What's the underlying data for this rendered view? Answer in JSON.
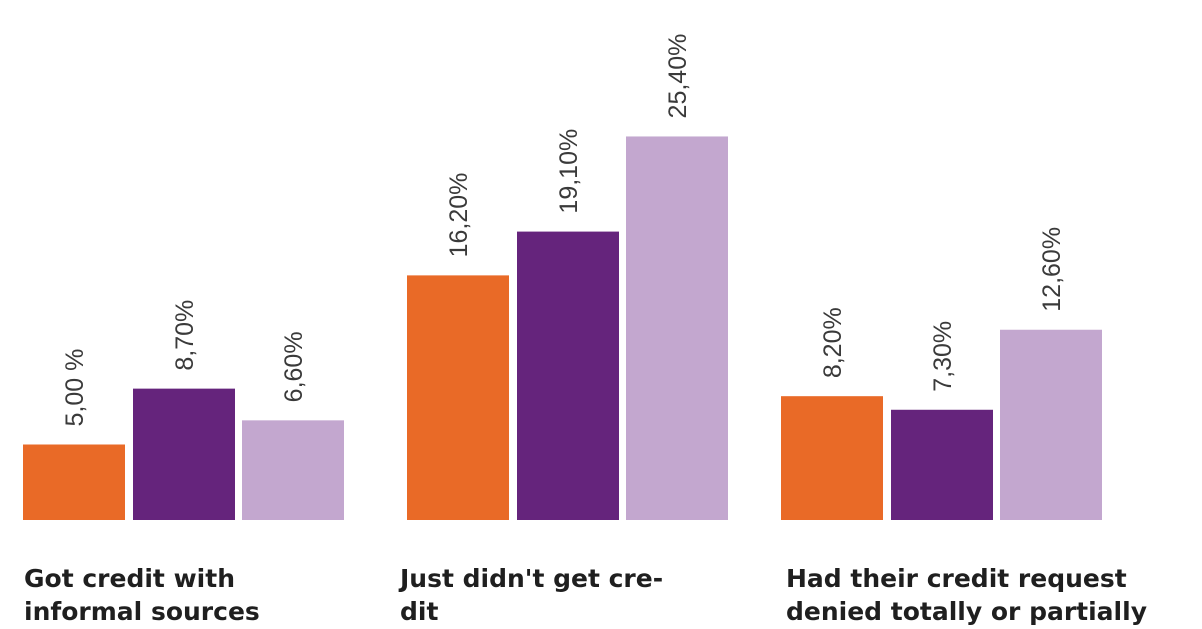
{
  "chart_data": {
    "type": "bar",
    "categories": [
      "Got credit with\ninformal sources",
      "Just didn't get cre-\ndit",
      "Had their credit request\ndenied totally or partially"
    ],
    "series": [
      {
        "color": "#e96a27",
        "values": [
          5.0,
          16.2,
          8.2
        ],
        "labels": [
          "5,00 %",
          "16,20%",
          "8,20%"
        ]
      },
      {
        "color": "#65247c",
        "values": [
          8.7,
          19.1,
          7.3
        ],
        "labels": [
          "8,70%",
          "19,10%",
          "7,30%"
        ]
      },
      {
        "color": "#c3a7cf",
        "values": [
          6.6,
          25.4,
          12.6
        ],
        "labels": [
          "6,60%",
          "25,40%",
          "12,60%"
        ]
      }
    ],
    "ylim": [
      0,
      28
    ],
    "grid": false,
    "legend": "none"
  }
}
